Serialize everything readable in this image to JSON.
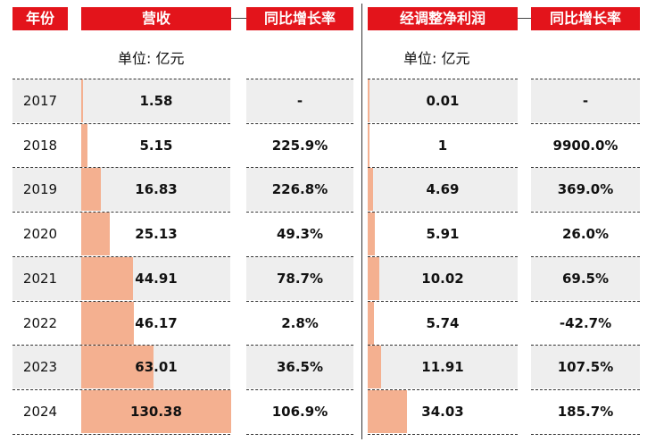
{
  "headers": {
    "year": "年份",
    "revenue": "营收",
    "revenue_growth": "同比增长率",
    "profit": "经调整净利润",
    "profit_growth": "同比增长率"
  },
  "units": {
    "left": "单位: 亿元",
    "right": "单位: 亿元"
  },
  "colors": {
    "header_bg": "#e3141b",
    "bar": "#f4b090",
    "row_shade": "#eeeeee"
  },
  "chart_data": {
    "type": "table",
    "columns": [
      "年份",
      "营收",
      "同比增长率",
      "经调整净利润",
      "同比增长率"
    ],
    "unit": "亿元",
    "rows": [
      {
        "year": "2017",
        "revenue": 1.58,
        "revenue_label": "1.58",
        "revenue_growth": "-",
        "profit": 0.01,
        "profit_label": "0.01",
        "profit_growth": "-"
      },
      {
        "year": "2018",
        "revenue": 5.15,
        "revenue_label": "5.15",
        "revenue_growth": "225.9%",
        "profit": 1,
        "profit_label": "1",
        "profit_growth": "9900.0%"
      },
      {
        "year": "2019",
        "revenue": 16.83,
        "revenue_label": "16.83",
        "revenue_growth": "226.8%",
        "profit": 4.69,
        "profit_label": "4.69",
        "profit_growth": "369.0%"
      },
      {
        "year": "2020",
        "revenue": 25.13,
        "revenue_label": "25.13",
        "revenue_growth": "49.3%",
        "profit": 5.91,
        "profit_label": "5.91",
        "profit_growth": "26.0%"
      },
      {
        "year": "2021",
        "revenue": 44.91,
        "revenue_label": "44.91",
        "revenue_growth": "78.7%",
        "profit": 10.02,
        "profit_label": "10.02",
        "profit_growth": "69.5%"
      },
      {
        "year": "2022",
        "revenue": 46.17,
        "revenue_label": "46.17",
        "revenue_growth": "2.8%",
        "profit": 5.74,
        "profit_label": "5.74",
        "profit_growth": "-42.7%"
      },
      {
        "year": "2023",
        "revenue": 63.01,
        "revenue_label": "63.01",
        "revenue_growth": "36.5%",
        "profit": 11.91,
        "profit_label": "11.91",
        "profit_growth": "107.5%"
      },
      {
        "year": "2024",
        "revenue": 130.38,
        "revenue_label": "130.38",
        "revenue_growth": "106.9%",
        "profit": 34.03,
        "profit_label": "34.03",
        "profit_growth": "185.7%"
      }
    ],
    "shaded_rows": [
      0,
      2,
      4,
      6
    ],
    "revenue_bar_max": 130.38,
    "profit_bar_max": 34.03
  }
}
